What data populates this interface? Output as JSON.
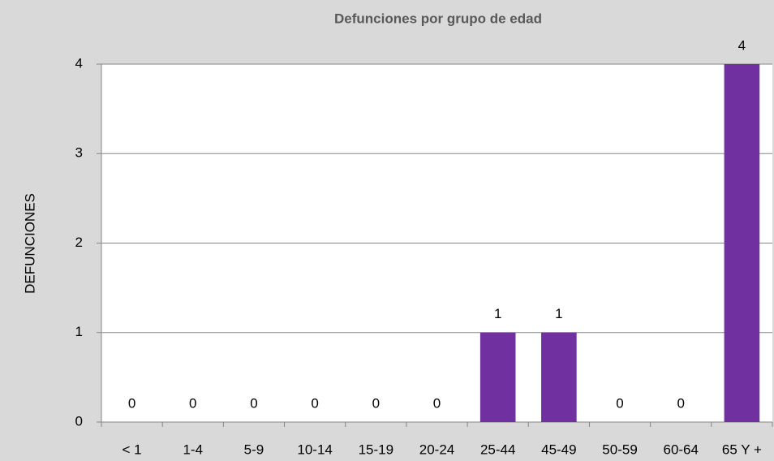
{
  "chart_data": {
    "type": "bar",
    "title": "Defunciones por grupo de edad",
    "y_label": "DEFUNCIONES",
    "categories": [
      "< 1",
      "1-4",
      "5-9",
      "10-14",
      "15-19",
      "20-24",
      "25-44",
      "45-49",
      "50-59",
      "60-64",
      "65 Y +"
    ],
    "values": [
      0,
      0,
      0,
      0,
      0,
      0,
      1,
      1,
      0,
      0,
      4
    ],
    "color": "#7030a0",
    "ylim": [
      0,
      4
    ],
    "yticks": [
      0,
      1,
      2,
      3,
      4
    ],
    "grid": true
  }
}
